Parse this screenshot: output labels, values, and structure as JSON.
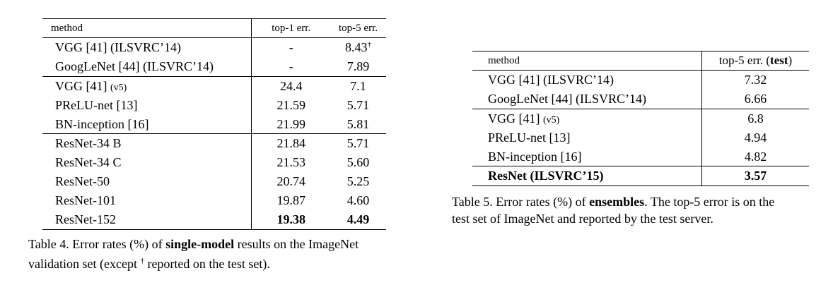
{
  "table4": {
    "headers": [
      "method",
      "top-1 err.",
      "top-5 err."
    ],
    "groups": [
      [
        {
          "method": "VGG [41] (ILSVRC’14)",
          "top1": "-",
          "top5": "8.43",
          "top5_sup": "†"
        },
        {
          "method": "GoogLeNet [44] (ILSVRC’14)",
          "top1": "-",
          "top5": "7.89"
        }
      ],
      [
        {
          "method": "VGG [41]",
          "method_suffix": "(v5)",
          "top1": "24.4",
          "top5": "7.1"
        },
        {
          "method": "PReLU-net [13]",
          "top1": "21.59",
          "top5": "5.71"
        },
        {
          "method": "BN-inception [16]",
          "top1": "21.99",
          "top5": "5.81"
        }
      ],
      [
        {
          "method": "ResNet-34 B",
          "top1": "21.84",
          "top5": "5.71"
        },
        {
          "method": "ResNet-34 C",
          "top1": "21.53",
          "top5": "5.60"
        },
        {
          "method": "ResNet-50",
          "top1": "20.74",
          "top5": "5.25"
        },
        {
          "method": "ResNet-101",
          "top1": "19.87",
          "top5": "4.60"
        },
        {
          "method": "ResNet-152",
          "top1": "19.38",
          "top5": "4.49",
          "bold_values": true
        }
      ]
    ],
    "caption": {
      "pre": "Table 4. Error rates (%) of ",
      "bold": "single-model",
      "post": " results on the ImageNet",
      "line2_pre": "validation set (except ",
      "dagger": "†",
      "line2_post": " reported on the test set)."
    }
  },
  "table5": {
    "header_method": "method",
    "header_col_pre": "top-5 err. (",
    "header_col_bold": "test",
    "header_col_post": ")",
    "groups": [
      [
        {
          "method": "VGG [41] (ILSVRC’14)",
          "top5": "7.32"
        },
        {
          "method": "GoogLeNet [44] (ILSVRC’14)",
          "top5": "6.66"
        }
      ],
      [
        {
          "method": "VGG [41]",
          "method_suffix": "(v5)",
          "top5": "6.8"
        },
        {
          "method": "PReLU-net [13]",
          "top5": "4.94"
        },
        {
          "method": "BN-inception [16]",
          "top5": "4.82"
        }
      ],
      [
        {
          "method": "ResNet (ILSVRC’15)",
          "top5": "3.57",
          "bold_all": true
        }
      ]
    ],
    "caption": {
      "pre": "Table 5. Error rates (%) of ",
      "bold": "ensembles",
      "post": ". The top-5 error is on the",
      "line2": "test set of ImageNet and reported by the test server."
    }
  }
}
